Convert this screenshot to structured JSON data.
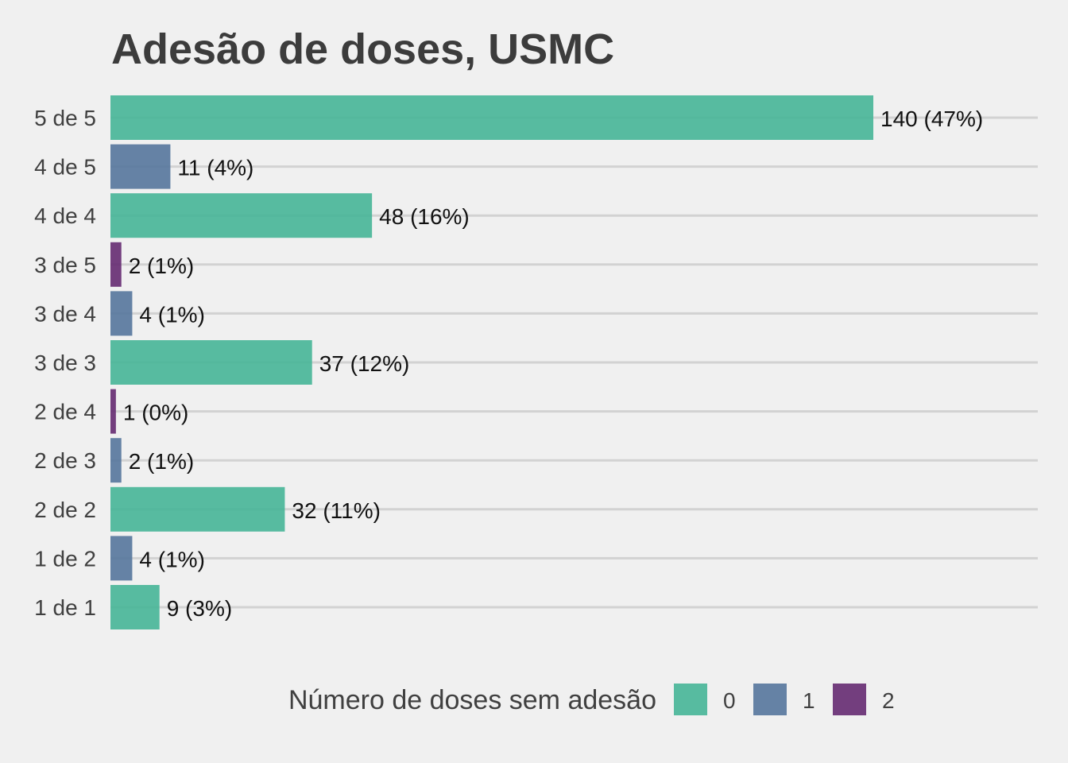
{
  "chart_data": {
    "type": "bar",
    "orientation": "horizontal",
    "title": "Adesão de doses, USMC",
    "categories": [
      "5 de 5",
      "4 de 5",
      "4 de 4",
      "3 de 5",
      "3 de 4",
      "3 de 3",
      "2 de 4",
      "2 de 3",
      "2 de 2",
      "1 de 2",
      "1 de 1"
    ],
    "values": [
      140,
      11,
      48,
      2,
      4,
      37,
      1,
      2,
      32,
      4,
      9
    ],
    "labels": [
      "140 (47%)",
      "11 (4%)",
      "48 (16%)",
      "2 (1%)",
      "4 (1%)",
      "37 (12%)",
      "1 (0%)",
      "2 (1%)",
      "32 (11%)",
      "4 (1%)",
      "9 (3%)"
    ],
    "group": [
      "0",
      "1",
      "0",
      "2",
      "1",
      "0",
      "2",
      "1",
      "0",
      "1",
      "0"
    ],
    "xlim": [
      0,
      170
    ],
    "grid": "horizontal",
    "legend": {
      "title": "Número de doses sem adesão",
      "placement": "bottom",
      "items": [
        {
          "key": "0",
          "color": "#46b597"
        },
        {
          "key": "1",
          "color": "#55769c"
        },
        {
          "key": "2",
          "color": "#652a71"
        }
      ]
    }
  }
}
